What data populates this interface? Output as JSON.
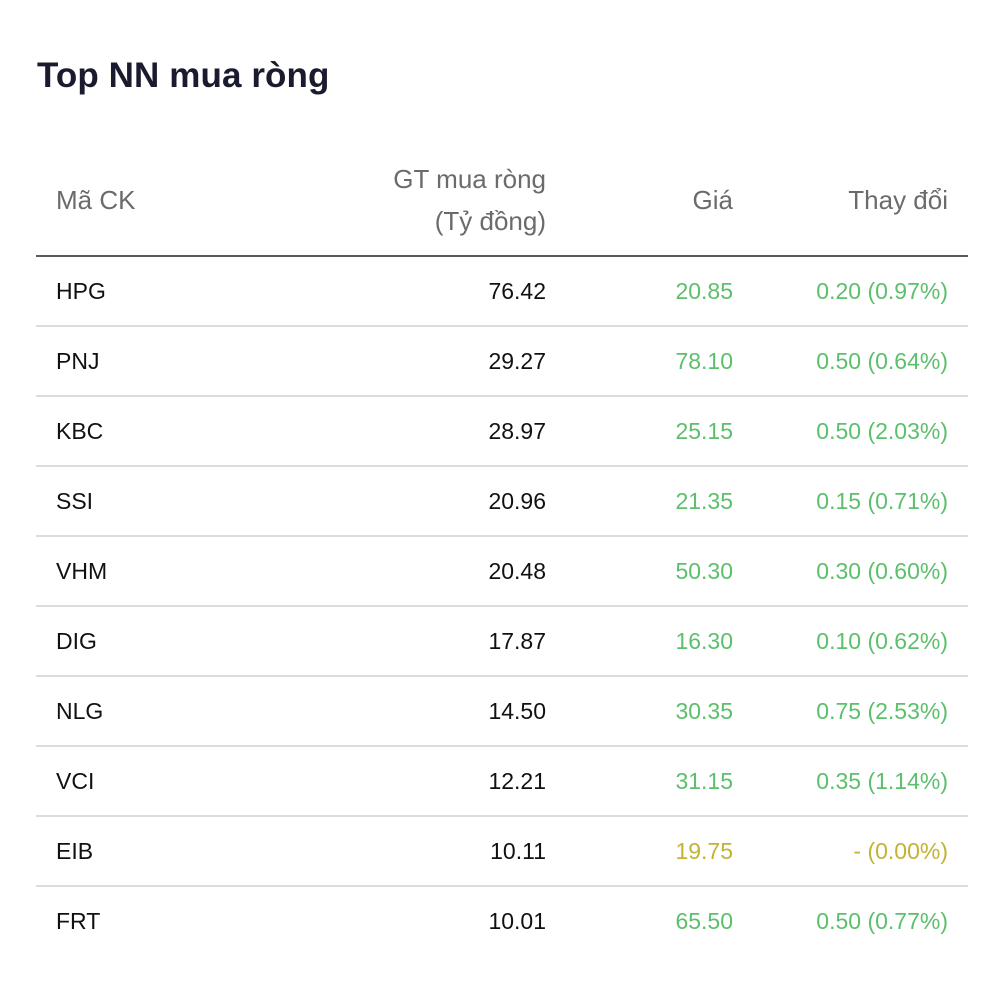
{
  "title": "Top NN mua ròng",
  "colors": {
    "up": "#5cbf6b",
    "reference": "#c2b335",
    "text": "#111111",
    "header_text": "#6b6b6b"
  },
  "columns": {
    "code": "Mã CK",
    "net_buy_line1": "GT mua ròng",
    "net_buy_line2": "(Tỷ đồng)",
    "price": "Giá",
    "change": "Thay đổi"
  },
  "rows": [
    {
      "code": "HPG",
      "net_buy": "76.42",
      "price": "20.85",
      "change": "0.20 (0.97%)",
      "trend": "up"
    },
    {
      "code": "PNJ",
      "net_buy": "29.27",
      "price": "78.10",
      "change": "0.50 (0.64%)",
      "trend": "up"
    },
    {
      "code": "KBC",
      "net_buy": "28.97",
      "price": "25.15",
      "change": "0.50 (2.03%)",
      "trend": "up"
    },
    {
      "code": "SSI",
      "net_buy": "20.96",
      "price": "21.35",
      "change": "0.15 (0.71%)",
      "trend": "up"
    },
    {
      "code": "VHM",
      "net_buy": "20.48",
      "price": "50.30",
      "change": "0.30 (0.60%)",
      "trend": "up"
    },
    {
      "code": "DIG",
      "net_buy": "17.87",
      "price": "16.30",
      "change": "0.10 (0.62%)",
      "trend": "up"
    },
    {
      "code": "NLG",
      "net_buy": "14.50",
      "price": "30.35",
      "change": "0.75 (2.53%)",
      "trend": "up"
    },
    {
      "code": "VCI",
      "net_buy": "12.21",
      "price": "31.15",
      "change": "0.35 (1.14%)",
      "trend": "up"
    },
    {
      "code": "EIB",
      "net_buy": "10.11",
      "price": "19.75",
      "change": "- (0.00%)",
      "trend": "reference"
    },
    {
      "code": "FRT",
      "net_buy": "10.01",
      "price": "65.50",
      "change": "0.50 (0.77%)",
      "trend": "up"
    }
  ]
}
